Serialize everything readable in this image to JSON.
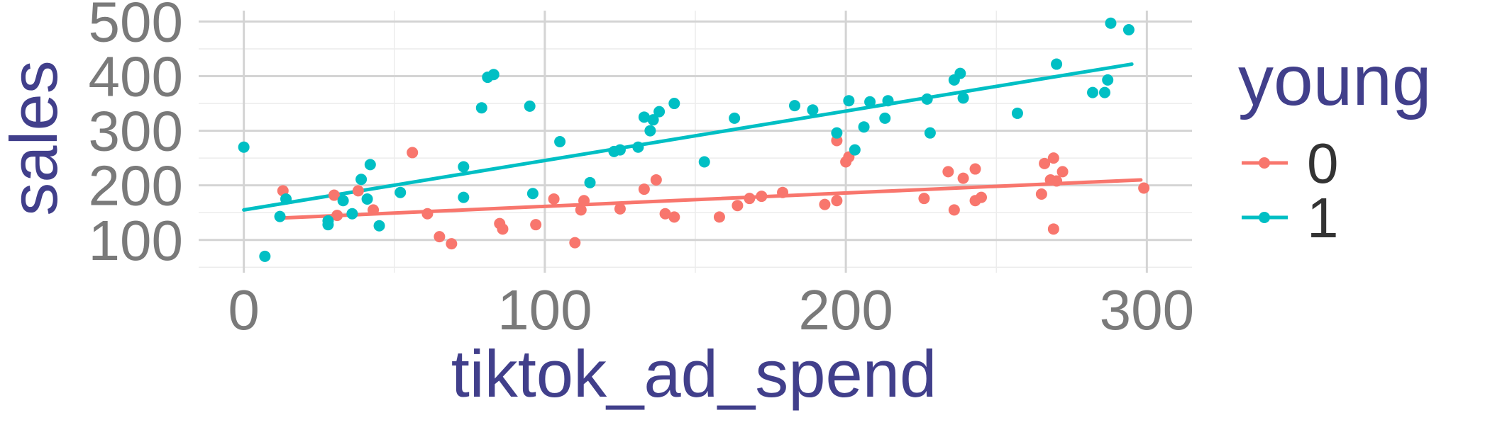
{
  "chart_data": {
    "type": "scatter",
    "xlabel": "tiktok_ad_spend",
    "ylabel": "sales",
    "xlim": [
      -15,
      315
    ],
    "ylim": [
      40,
      520
    ],
    "x_ticks": [
      0,
      100,
      200,
      300
    ],
    "y_ticks": [
      100,
      200,
      300,
      400,
      500
    ],
    "grid": true,
    "legend": {
      "title": "young",
      "position": "right"
    },
    "series": [
      {
        "name": "0",
        "color": "#f8766d",
        "trend": {
          "x": [
            12,
            298
          ],
          "y": [
            140,
            210
          ]
        },
        "points": [
          [
            13,
            190
          ],
          [
            30,
            182
          ],
          [
            31,
            145
          ],
          [
            38,
            190
          ],
          [
            43,
            155
          ],
          [
            56,
            260
          ],
          [
            61,
            148
          ],
          [
            65,
            106
          ],
          [
            69,
            93
          ],
          [
            85,
            130
          ],
          [
            86,
            120
          ],
          [
            97,
            128
          ],
          [
            103,
            175
          ],
          [
            110,
            95
          ],
          [
            112,
            155
          ],
          [
            113,
            172
          ],
          [
            125,
            157
          ],
          [
            133,
            193
          ],
          [
            137,
            210
          ],
          [
            140,
            148
          ],
          [
            143,
            142
          ],
          [
            158,
            142
          ],
          [
            164,
            163
          ],
          [
            168,
            176
          ],
          [
            172,
            180
          ],
          [
            179,
            187
          ],
          [
            193,
            165
          ],
          [
            197,
            172
          ],
          [
            197,
            282
          ],
          [
            200,
            243
          ],
          [
            201,
            252
          ],
          [
            226,
            176
          ],
          [
            234,
            225
          ],
          [
            236,
            155
          ],
          [
            239,
            213
          ],
          [
            243,
            230
          ],
          [
            243,
            172
          ],
          [
            245,
            178
          ],
          [
            265,
            184
          ],
          [
            266,
            240
          ],
          [
            268,
            210
          ],
          [
            269,
            120
          ],
          [
            269,
            250
          ],
          [
            270,
            208
          ],
          [
            272,
            225
          ],
          [
            299,
            195
          ]
        ]
      },
      {
        "name": "1",
        "color": "#00bfc4",
        "trend": {
          "x": [
            0,
            295
          ],
          "y": [
            155,
            422
          ]
        },
        "points": [
          [
            0,
            270
          ],
          [
            7,
            70
          ],
          [
            12,
            143
          ],
          [
            14,
            175
          ],
          [
            28,
            128
          ],
          [
            28,
            135
          ],
          [
            33,
            172
          ],
          [
            36,
            148
          ],
          [
            39,
            211
          ],
          [
            41,
            175
          ],
          [
            42,
            238
          ],
          [
            45,
            126
          ],
          [
            52,
            187
          ],
          [
            73,
            234
          ],
          [
            73,
            178
          ],
          [
            81,
            398
          ],
          [
            79,
            342
          ],
          [
            83,
            403
          ],
          [
            95,
            345
          ],
          [
            96,
            185
          ],
          [
            105,
            280
          ],
          [
            115,
            205
          ],
          [
            123,
            262
          ],
          [
            125,
            265
          ],
          [
            131,
            270
          ],
          [
            133,
            325
          ],
          [
            135,
            300
          ],
          [
            136,
            320
          ],
          [
            138,
            335
          ],
          [
            143,
            350
          ],
          [
            153,
            243
          ],
          [
            163,
            323
          ],
          [
            183,
            346
          ],
          [
            189,
            338
          ],
          [
            197,
            296
          ],
          [
            201,
            355
          ],
          [
            203,
            265
          ],
          [
            206,
            307
          ],
          [
            208,
            353
          ],
          [
            213,
            323
          ],
          [
            214,
            355
          ],
          [
            227,
            358
          ],
          [
            228,
            296
          ],
          [
            236,
            393
          ],
          [
            238,
            405
          ],
          [
            239,
            360
          ],
          [
            257,
            332
          ],
          [
            270,
            422
          ],
          [
            282,
            370
          ],
          [
            286,
            370
          ],
          [
            287,
            393
          ],
          [
            288,
            497
          ],
          [
            294,
            485
          ]
        ]
      }
    ]
  }
}
